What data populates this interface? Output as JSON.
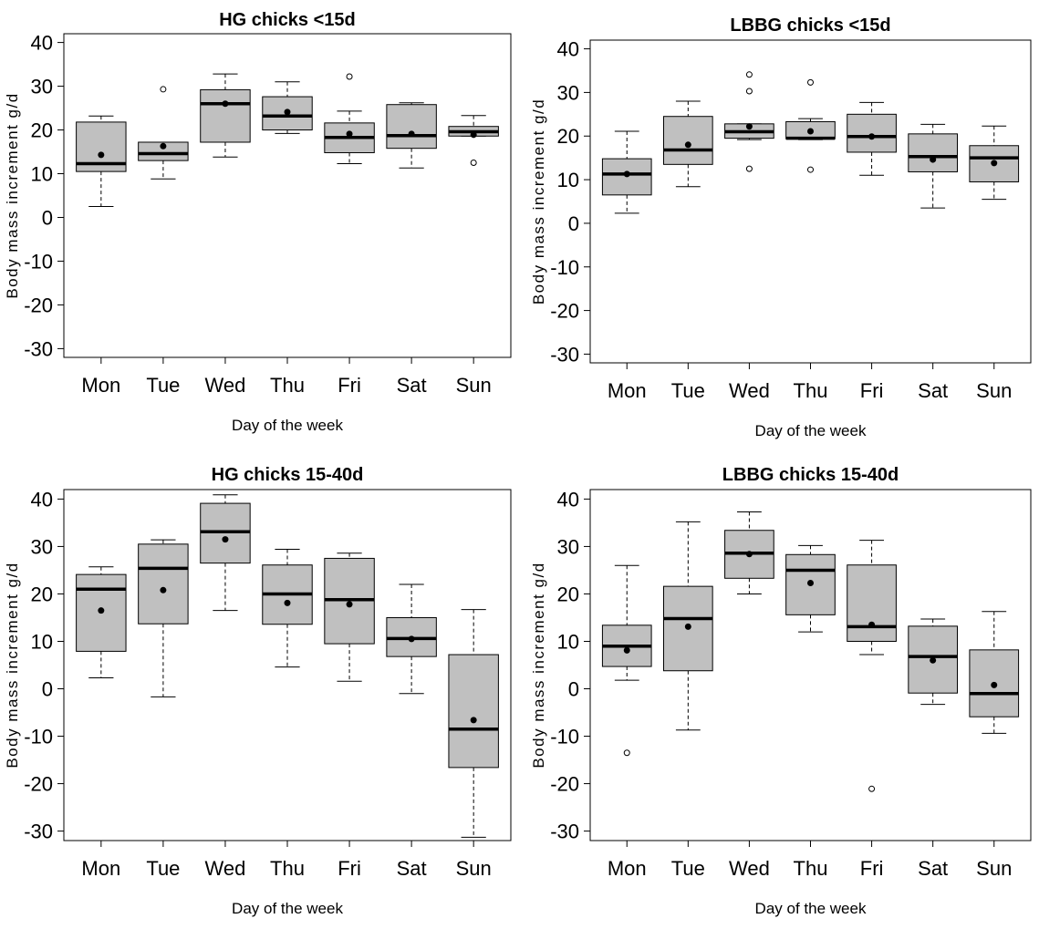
{
  "chart_data": [
    {
      "type": "box",
      "title": "HG chicks <15d",
      "xlabel": "Day of the week",
      "ylabel": "Body mass increment g/d",
      "ylim": [
        -32,
        42
      ],
      "yticks": [
        -30,
        -20,
        -10,
        0,
        10,
        20,
        30,
        40
      ],
      "categories": [
        "Mon",
        "Tue",
        "Wed",
        "Thu",
        "Fri",
        "Sat",
        "Sun"
      ],
      "boxes": [
        {
          "min": 2.5,
          "q1": 10.5,
          "median": 12.3,
          "q3": 21.8,
          "max": 23.2,
          "mean": 14.3,
          "outliers": []
        },
        {
          "min": 8.8,
          "q1": 13.0,
          "median": 14.6,
          "q3": 17.2,
          "max": 17.2,
          "mean": 16.3,
          "outliers": [
            29.3
          ]
        },
        {
          "min": 13.8,
          "q1": 17.2,
          "median": 26.0,
          "q3": 29.2,
          "max": 32.8,
          "mean": 26.0,
          "outliers": []
        },
        {
          "min": 19.2,
          "q1": 20.0,
          "median": 23.2,
          "q3": 27.6,
          "max": 31.0,
          "mean": 24.1,
          "outliers": []
        },
        {
          "min": 12.3,
          "q1": 14.8,
          "median": 18.3,
          "q3": 21.6,
          "max": 24.3,
          "mean": 19.1,
          "outliers": [
            32.2
          ]
        },
        {
          "min": 11.3,
          "q1": 15.8,
          "median": 18.7,
          "q3": 25.8,
          "max": 26.2,
          "mean": 19.1,
          "outliers": []
        },
        {
          "min": 18.6,
          "q1": 18.6,
          "median": 19.6,
          "q3": 20.8,
          "max": 23.3,
          "mean": 18.9,
          "outliers": [
            12.5
          ]
        }
      ]
    },
    {
      "type": "box",
      "title": "LBBG chicks <15d",
      "xlabel": "Day of the week",
      "ylabel": "Body mass increment g/d",
      "ylim": [
        -32,
        42
      ],
      "yticks": [
        -30,
        -20,
        -10,
        0,
        10,
        20,
        30,
        40
      ],
      "categories": [
        "Mon",
        "Tue",
        "Wed",
        "Thu",
        "Fri",
        "Sat",
        "Sun"
      ],
      "boxes": [
        {
          "min": 2.3,
          "q1": 6.5,
          "median": 11.3,
          "q3": 14.8,
          "max": 21.1,
          "mean": 11.3,
          "outliers": []
        },
        {
          "min": 8.4,
          "q1": 13.5,
          "median": 16.8,
          "q3": 24.5,
          "max": 28.0,
          "mean": 18.0,
          "outliers": []
        },
        {
          "min": 19.2,
          "q1": 19.5,
          "median": 21.0,
          "q3": 22.8,
          "max": 22.8,
          "mean": 22.2,
          "outliers": [
            34.1,
            30.3,
            12.5
          ]
        },
        {
          "min": 19.2,
          "q1": 19.4,
          "median": 19.5,
          "q3": 23.3,
          "max": 24.0,
          "mean": 21.1,
          "outliers": [
            32.3,
            12.3
          ]
        },
        {
          "min": 11.0,
          "q1": 16.3,
          "median": 19.9,
          "q3": 25.0,
          "max": 27.7,
          "mean": 19.9,
          "outliers": []
        },
        {
          "min": 3.5,
          "q1": 11.8,
          "median": 15.3,
          "q3": 20.5,
          "max": 22.7,
          "mean": 14.6,
          "outliers": []
        },
        {
          "min": 5.5,
          "q1": 9.5,
          "median": 15.0,
          "q3": 17.8,
          "max": 22.3,
          "mean": 13.8,
          "outliers": []
        }
      ]
    },
    {
      "type": "box",
      "title": "HG chicks 15-40d",
      "xlabel": "Day of the week",
      "ylabel": "Body mass increment g/d",
      "ylim": [
        -32,
        42
      ],
      "yticks": [
        -30,
        -20,
        -10,
        0,
        10,
        20,
        30,
        40
      ],
      "categories": [
        "Mon",
        "Tue",
        "Wed",
        "Thu",
        "Fri",
        "Sat",
        "Sun"
      ],
      "boxes": [
        {
          "min": 2.3,
          "q1": 7.9,
          "median": 21.0,
          "q3": 24.1,
          "max": 25.7,
          "mean": 16.5,
          "outliers": []
        },
        {
          "min": -1.7,
          "q1": 13.7,
          "median": 25.4,
          "q3": 30.5,
          "max": 31.4,
          "mean": 20.8,
          "outliers": []
        },
        {
          "min": 16.5,
          "q1": 26.5,
          "median": 33.1,
          "q3": 39.1,
          "max": 40.9,
          "mean": 31.5,
          "outliers": []
        },
        {
          "min": 4.6,
          "q1": 13.6,
          "median": 20.0,
          "q3": 26.1,
          "max": 29.4,
          "mean": 18.1,
          "outliers": []
        },
        {
          "min": 1.6,
          "q1": 9.5,
          "median": 18.8,
          "q3": 27.5,
          "max": 28.6,
          "mean": 17.8,
          "outliers": []
        },
        {
          "min": -1.0,
          "q1": 6.8,
          "median": 10.6,
          "q3": 15.0,
          "max": 22.0,
          "mean": 10.5,
          "outliers": []
        },
        {
          "min": -31.3,
          "q1": -16.6,
          "median": -8.5,
          "q3": 7.2,
          "max": 16.7,
          "mean": -6.6,
          "outliers": []
        }
      ]
    },
    {
      "type": "box",
      "title": "LBBG chicks 15-40d",
      "xlabel": "Day of the week",
      "ylabel": "Body mass increment g/d",
      "ylim": [
        -32,
        42
      ],
      "yticks": [
        -30,
        -20,
        -10,
        0,
        10,
        20,
        30,
        40
      ],
      "categories": [
        "Mon",
        "Tue",
        "Wed",
        "Thu",
        "Fri",
        "Sat",
        "Sun"
      ],
      "boxes": [
        {
          "min": 1.8,
          "q1": 4.7,
          "median": 9.0,
          "q3": 13.4,
          "max": 26.0,
          "mean": 8.1,
          "outliers": [
            -13.5
          ]
        },
        {
          "min": -8.7,
          "q1": 3.8,
          "median": 14.8,
          "q3": 21.6,
          "max": 35.2,
          "mean": 13.1,
          "outliers": []
        },
        {
          "min": 20.0,
          "q1": 23.3,
          "median": 28.6,
          "q3": 33.4,
          "max": 37.3,
          "mean": 28.4,
          "outliers": []
        },
        {
          "min": 12.0,
          "q1": 15.6,
          "median": 25.0,
          "q3": 28.3,
          "max": 30.2,
          "mean": 22.3,
          "outliers": []
        },
        {
          "min": 7.2,
          "q1": 10.0,
          "median": 13.1,
          "q3": 26.1,
          "max": 31.3,
          "mean": 13.5,
          "outliers": [
            -21.1
          ]
        },
        {
          "min": -3.3,
          "q1": -0.9,
          "median": 6.8,
          "q3": 13.2,
          "max": 14.7,
          "mean": 6.0,
          "outliers": []
        },
        {
          "min": -9.4,
          "q1": -5.9,
          "median": -1.0,
          "q3": 8.2,
          "max": 16.3,
          "mean": 0.8,
          "outliers": []
        }
      ]
    }
  ]
}
